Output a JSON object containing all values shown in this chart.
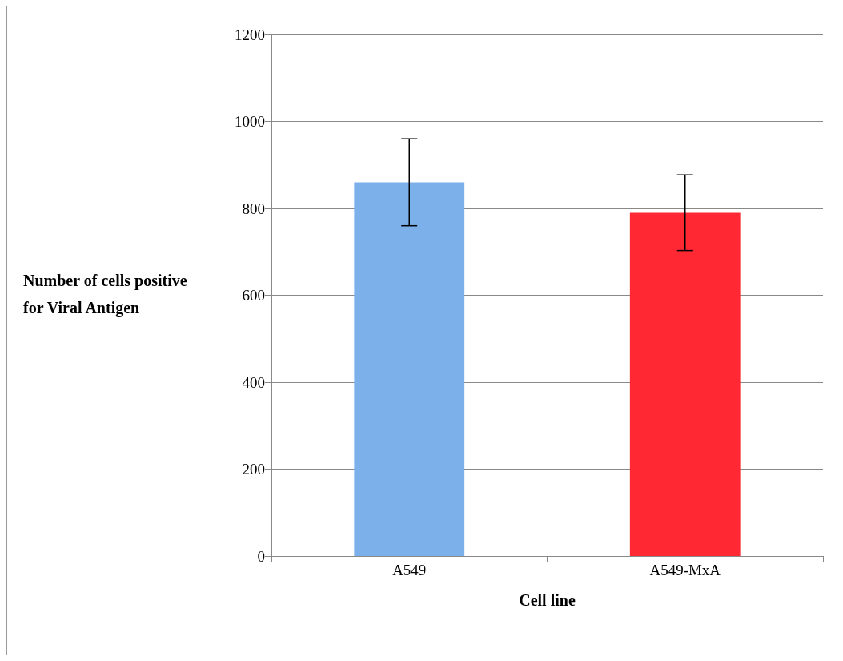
{
  "chart_data": {
    "type": "bar",
    "xlabel": "Cell line",
    "ylabel": "Number of cells positive for Viral Antigen",
    "categories": [
      "A549",
      "A549-MxA"
    ],
    "values": [
      860,
      790
    ],
    "errors": [
      100,
      87
    ],
    "colors": [
      "#7cb0ea",
      "#ff2833"
    ],
    "ylim": [
      0,
      1200
    ],
    "yticks": [
      0,
      200,
      400,
      600,
      800,
      1000,
      1200
    ],
    "grid": "y"
  }
}
